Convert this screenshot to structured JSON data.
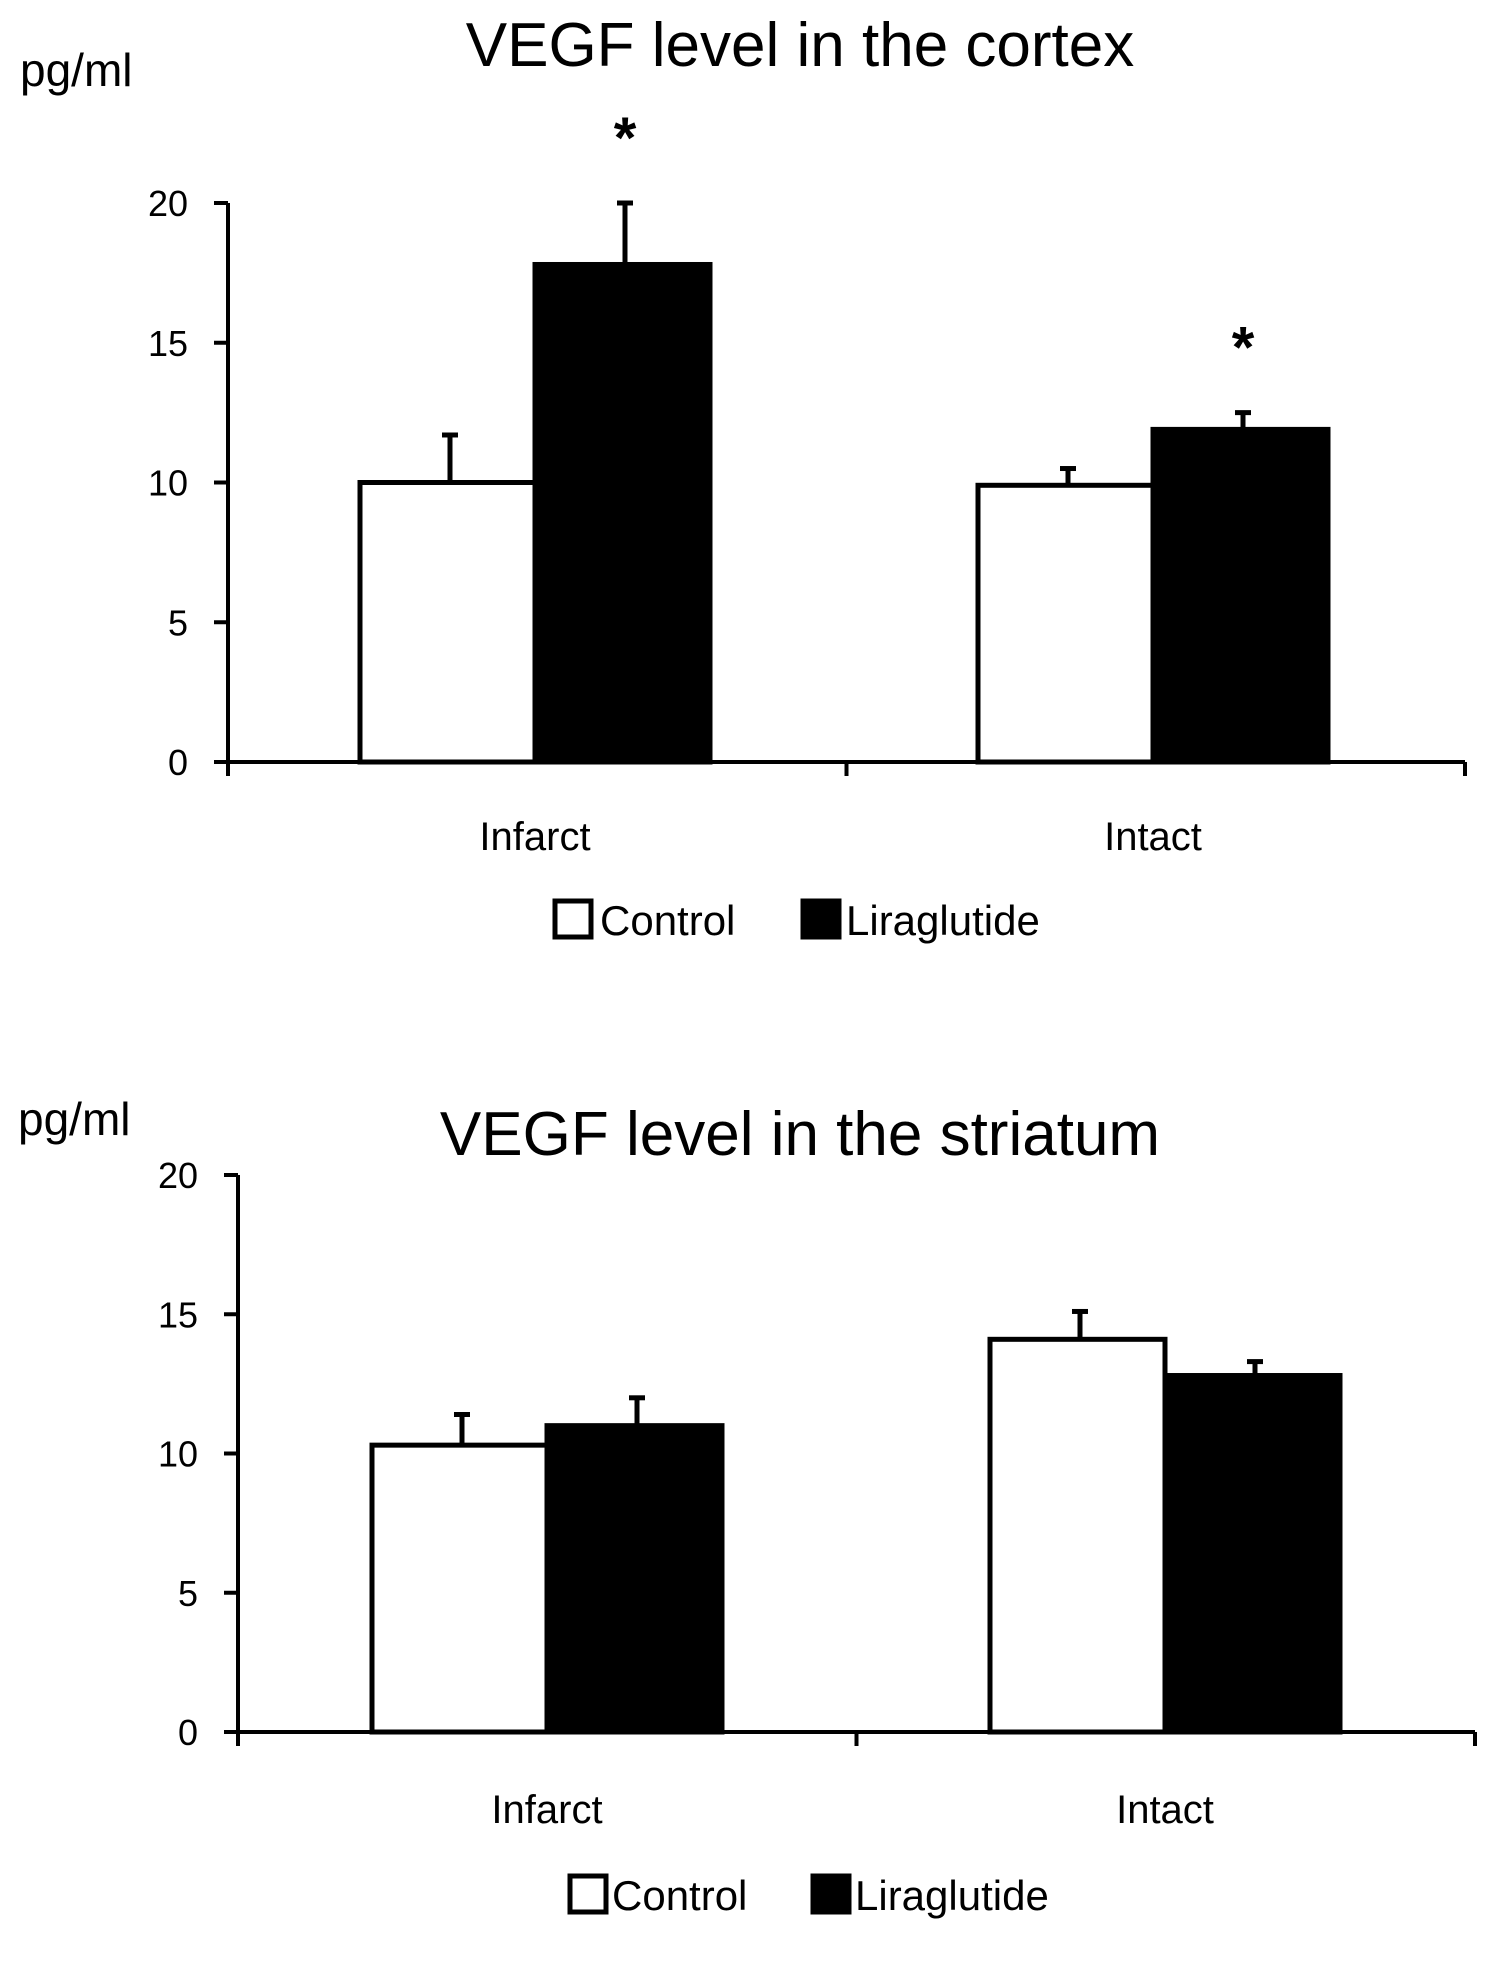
{
  "figure": {
    "legend": {
      "series": [
        "Control",
        "Liraglutide"
      ]
    },
    "colors": {
      "control": "#ffffff",
      "liraglutide": "#000000",
      "axis": "#000000"
    }
  },
  "chart_data": [
    {
      "type": "bar",
      "title": "VEGF level in the cortex",
      "ylabel": "pg/ml",
      "xlabel": "",
      "ylim": [
        0,
        20
      ],
      "yticks": [
        "0",
        "5",
        "10",
        "15",
        "20"
      ],
      "categories": [
        "Infarct",
        "Intact"
      ],
      "series": [
        {
          "name": "Control",
          "values": [
            10.0,
            9.9
          ],
          "errors": [
            1.7,
            0.6
          ]
        },
        {
          "name": "Liraglutide",
          "values": [
            17.8,
            11.9
          ],
          "errors": [
            2.2,
            0.6
          ]
        }
      ],
      "annotations": [
        {
          "text": "*",
          "category": "Infarct",
          "series": "Liraglutide"
        },
        {
          "text": "*",
          "category": "Intact",
          "series": "Liraglutide"
        }
      ],
      "legend": [
        "Control",
        "Liraglutide"
      ],
      "legend_position": "bottom",
      "grid": false
    },
    {
      "type": "bar",
      "title": "VEGF level in the striatum",
      "ylabel": "pg/ml",
      "xlabel": "",
      "ylim": [
        0,
        20
      ],
      "yticks": [
        "0",
        "5",
        "10",
        "15",
        "20"
      ],
      "categories": [
        "Infarct",
        "Intact"
      ],
      "series": [
        {
          "name": "Control",
          "values": [
            10.3,
            14.1
          ],
          "errors": [
            1.1,
            1.0
          ]
        },
        {
          "name": "Liraglutide",
          "values": [
            11.0,
            12.8
          ],
          "errors": [
            1.0,
            0.5
          ]
        }
      ],
      "annotations": [],
      "legend": [
        "Control",
        "Liraglutide"
      ],
      "legend_position": "bottom",
      "grid": false
    }
  ]
}
